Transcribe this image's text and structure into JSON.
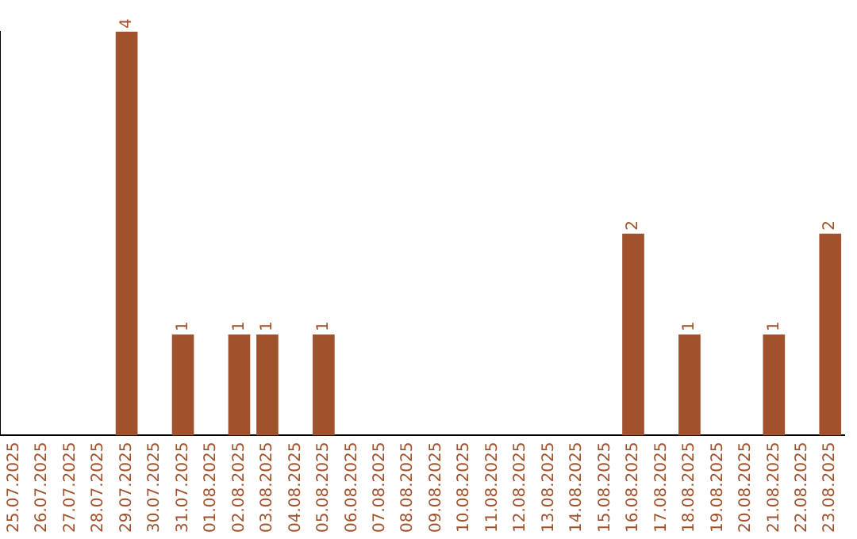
{
  "chart_data": {
    "type": "bar",
    "categories": [
      "25.07.2025",
      "26.07.2025",
      "27.07.2025",
      "28.07.2025",
      "29.07.2025",
      "30.07.2025",
      "31.07.2025",
      "01.08.2025",
      "02.08.2025",
      "03.08.2025",
      "04.08.2025",
      "05.08.2025",
      "06.08.2025",
      "07.08.2025",
      "08.08.2025",
      "09.08.2025",
      "10.08.2025",
      "11.08.2025",
      "12.08.2025",
      "13.08.2025",
      "14.08.2025",
      "15.08.2025",
      "16.08.2025",
      "17.08.2025",
      "18.08.2025",
      "19.08.2025",
      "20.08.2025",
      "21.08.2025",
      "22.08.2025",
      "23.08.2025"
    ],
    "values": [
      0,
      0,
      0,
      0,
      4,
      0,
      1,
      0,
      1,
      1,
      0,
      1,
      0,
      0,
      0,
      0,
      0,
      0,
      0,
      0,
      0,
      0,
      2,
      0,
      1,
      0,
      0,
      1,
      0,
      2
    ],
    "value_labels": [
      null,
      null,
      null,
      null,
      "4",
      null,
      "1",
      null,
      "1",
      "1",
      null,
      "1",
      null,
      null,
      null,
      null,
      null,
      null,
      null,
      null,
      null,
      null,
      "2",
      null,
      "1",
      null,
      null,
      "1",
      null,
      "2"
    ],
    "color": "#a0522d",
    "grid": false,
    "legend": false,
    "tick_labels": "x"
  }
}
